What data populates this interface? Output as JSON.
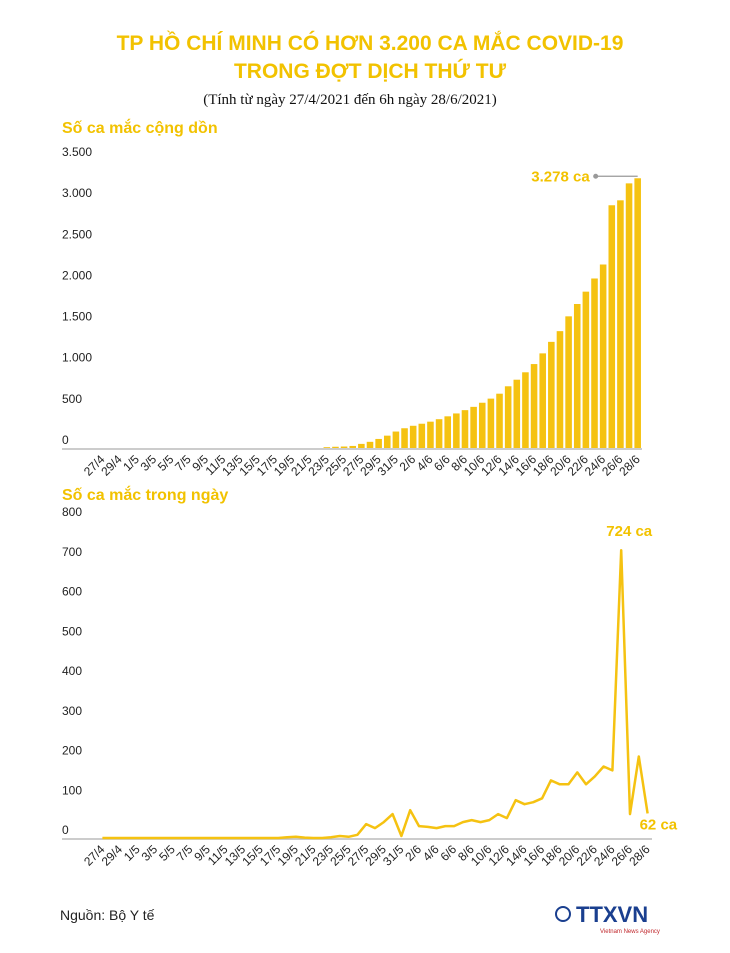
{
  "header": {
    "title_line1": "TP HỒ CHÍ MINH CÓ HƠN 3.200 CA MẮC COVID-19",
    "title_line2": "TRONG ĐỢT DỊCH THỨ TƯ",
    "subtitle": "(Tính từ ngày 27/4/2021 đến 6h ngày 28/6/2021)"
  },
  "chart_data": [
    {
      "type": "bar",
      "title": "Số ca mắc cộng dồn",
      "color": "#f5c211",
      "categories": [
        "27/4",
        null,
        "29/4",
        null,
        "1/5",
        null,
        "3/5",
        null,
        "5/5",
        null,
        "7/5",
        null,
        "9/5",
        null,
        "11/5",
        null,
        "13/5",
        null,
        "15/5",
        null,
        "17/5",
        null,
        "19/5",
        null,
        "21/5",
        null,
        "23/5",
        null,
        "25/5",
        null,
        "27/5",
        null,
        "29/5",
        null,
        "31/5",
        null,
        "2/6",
        null,
        "4/6",
        null,
        "6/6",
        null,
        "8/6",
        null,
        "10/6",
        null,
        "12/6",
        null,
        "14/6",
        null,
        "16/6",
        null,
        "18/6",
        null,
        "20/6",
        null,
        "22/6",
        null,
        "24/6",
        null,
        "26/6",
        null,
        "28/6"
      ],
      "values": [
        0,
        0,
        0,
        0,
        0,
        0,
        0,
        0,
        0,
        0,
        0,
        0,
        0,
        0,
        0,
        0,
        0,
        0,
        0,
        0,
        0,
        0,
        0,
        0,
        0,
        0,
        10,
        15,
        18,
        25,
        50,
        75,
        110,
        150,
        200,
        240,
        270,
        295,
        320,
        350,
        385,
        420,
        460,
        500,
        550,
        600,
        660,
        750,
        830,
        920,
        1020,
        1150,
        1290,
        1420,
        1600,
        1750,
        1900,
        2060,
        2230,
        2950,
        3010,
        3216,
        3278
      ],
      "value_labels": [
        null,
        null,
        null,
        null,
        null,
        null,
        null,
        null,
        null,
        null,
        null,
        null,
        null,
        null,
        null,
        null,
        null,
        null,
        null,
        null,
        null,
        null,
        null,
        null,
        null,
        null,
        null,
        null,
        null,
        null,
        null,
        null,
        null,
        null,
        null,
        null,
        null,
        null,
        null,
        null,
        null,
        null,
        null,
        null,
        null,
        null,
        null,
        null,
        null,
        null,
        null,
        null,
        null,
        null,
        null,
        null,
        null,
        null,
        null,
        null,
        null,
        null,
        "3.278 ca"
      ],
      "ylim": [
        0,
        3500
      ],
      "yticks": [
        0,
        500,
        {
          "value": 1000,
          "label": "1.000"
        },
        {
          "value": 1500,
          "label": "1.500"
        },
        {
          "value": 2000,
          "label": "2.000"
        },
        {
          "value": 2500,
          "label": "2.500"
        },
        {
          "value": 3000,
          "label": "3.000"
        },
        {
          "value": 3500,
          "label": "3.500"
        }
      ],
      "grid": false
    },
    {
      "type": "line",
      "title": "Số ca mắc trong ngày",
      "color": "#f5c211",
      "categories": [
        "27/4",
        null,
        "29/4",
        null,
        "1/5",
        null,
        "3/5",
        null,
        "5/5",
        null,
        "7/5",
        null,
        "9/5",
        null,
        "11/5",
        null,
        "13/5",
        null,
        "15/5",
        null,
        "17/5",
        null,
        "19/5",
        null,
        "21/5",
        null,
        "23/5",
        null,
        "25/5",
        null,
        "27/5",
        null,
        "29/5",
        null,
        "31/5",
        null,
        "2/6",
        null,
        "4/6",
        null,
        "6/6",
        null,
        "8/6",
        null,
        "10/6",
        null,
        "12/6",
        null,
        "14/6",
        null,
        "16/6",
        null,
        "18/6",
        null,
        "20/6",
        null,
        "22/6",
        null,
        "24/6",
        null,
        "26/6",
        null,
        "28/6"
      ],
      "values": [
        0,
        0,
        0,
        0,
        0,
        0,
        0,
        0,
        0,
        0,
        0,
        0,
        0,
        0,
        0,
        0,
        0,
        0,
        0,
        0,
        0,
        2,
        3,
        1,
        0,
        0,
        2,
        5,
        3,
        8,
        35,
        25,
        40,
        60,
        5,
        70,
        30,
        28,
        25,
        30,
        30,
        40,
        45,
        40,
        45,
        60,
        50,
        95,
        85,
        90,
        100,
        145,
        135,
        135,
        165,
        135,
        155,
        180,
        170,
        724,
        60,
        205,
        62
      ],
      "value_labels": [
        null,
        null,
        null,
        null,
        null,
        null,
        null,
        null,
        null,
        null,
        null,
        null,
        null,
        null,
        null,
        null,
        null,
        null,
        null,
        null,
        null,
        null,
        null,
        null,
        null,
        null,
        null,
        null,
        null,
        null,
        null,
        null,
        null,
        null,
        null,
        null,
        null,
        null,
        null,
        null,
        null,
        null,
        null,
        null,
        null,
        null,
        null,
        null,
        null,
        null,
        null,
        null,
        null,
        null,
        null,
        null,
        null,
        null,
        null,
        "724 ca",
        null,
        null,
        "62 ca"
      ],
      "ylim": [
        0,
        800
      ],
      "yticks": [
        0,
        100,
        200,
        300,
        400,
        500,
        600,
        700,
        800
      ],
      "grid": false
    }
  ],
  "footer": {
    "source": "Nguồn: Bộ Y tế",
    "logo": "TTXVN",
    "logo_sub": "Vietnam News Agency"
  }
}
